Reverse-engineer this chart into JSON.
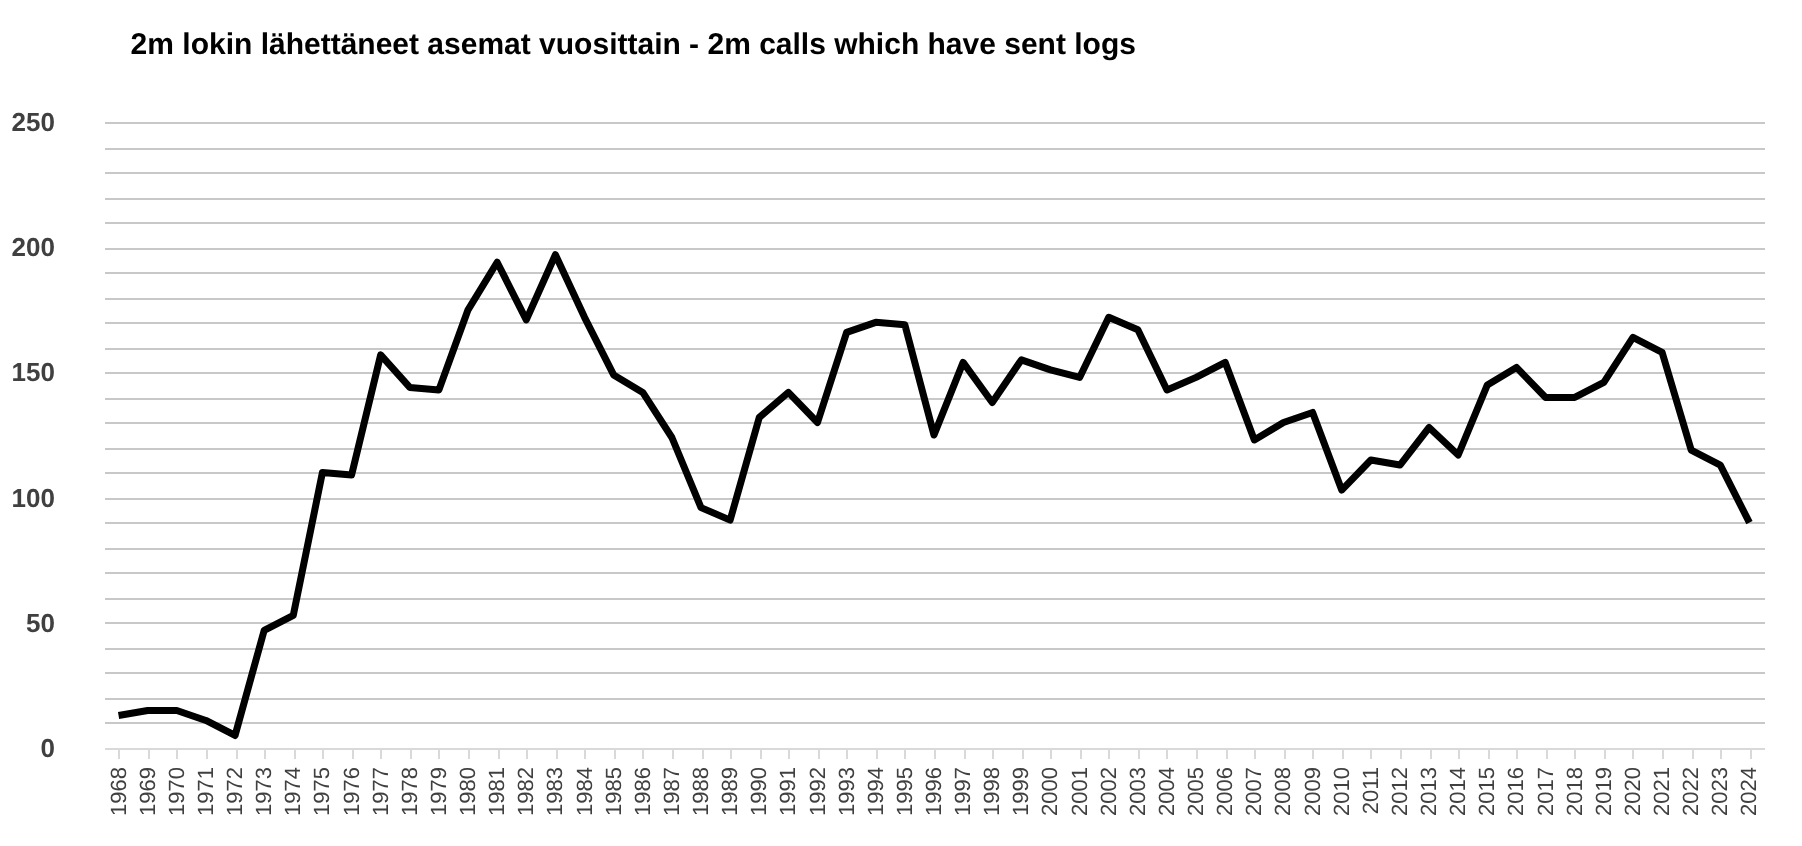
{
  "chart_data": {
    "type": "line",
    "title": "2m lokin lähettäneet asemat  vuosittain   - 2m calls which have sent logs",
    "categories": [
      "1968",
      "1969",
      "1970",
      "1971",
      "1972",
      "1973",
      "1974",
      "1975",
      "1976",
      "1977",
      "1978",
      "1979",
      "1980",
      "1981",
      "1982",
      "1983",
      "1984",
      "1985",
      "1986",
      "1987",
      "1988",
      "1989",
      "1990",
      "1991",
      "1992",
      "1993",
      "1994",
      "1995",
      "1996",
      "1997",
      "1998",
      "1999",
      "2000",
      "2001",
      "2002",
      "2003",
      "2004",
      "2005",
      "2006",
      "2007",
      "2008",
      "2009",
      "2010",
      "2011",
      "2012",
      "2013",
      "2014",
      "2015",
      "2016",
      "2017",
      "2018",
      "2019",
      "2020",
      "2021",
      "2022",
      "2023",
      "2024"
    ],
    "series": [
      {
        "color": "#000000",
        "values": [
          13,
          15,
          15,
          11,
          5,
          47,
          53,
          110,
          109,
          157,
          144,
          143,
          175,
          194,
          171,
          197,
          172,
          149,
          142,
          124,
          96,
          91,
          132,
          142,
          130,
          166,
          170,
          169,
          125,
          154,
          138,
          155,
          151,
          148,
          172,
          167,
          143,
          148,
          154,
          123,
          130,
          134,
          103,
          115,
          113,
          128,
          117,
          145,
          152,
          140,
          140,
          146,
          164,
          158,
          119,
          113,
          90
        ]
      }
    ],
    "ylim": [
      0,
      250
    ],
    "yticks": [
      0,
      {
        "value": 10,
        "label": null
      },
      {
        "value": 20,
        "label": null
      },
      {
        "value": 30,
        "label": null
      },
      {
        "value": 40,
        "label": null
      },
      50,
      {
        "value": 60,
        "label": null
      },
      {
        "value": 70,
        "label": null
      },
      {
        "value": 80,
        "label": null
      },
      {
        "value": 90,
        "label": null
      },
      100,
      {
        "value": 110,
        "label": null
      },
      {
        "value": 120,
        "label": null
      },
      {
        "value": 130,
        "label": null
      },
      {
        "value": 140,
        "label": null
      },
      150,
      {
        "value": 160,
        "label": null
      },
      {
        "value": 170,
        "label": null
      },
      {
        "value": 180,
        "label": null
      },
      {
        "value": 190,
        "label": null
      },
      200,
      {
        "value": 210,
        "label": null
      },
      {
        "value": 220,
        "label": null
      },
      {
        "value": 230,
        "label": null
      },
      {
        "value": 240,
        "label": null
      },
      250
    ],
    "grid": "y",
    "legend": false,
    "marker": "none",
    "line_style": "solid"
  }
}
